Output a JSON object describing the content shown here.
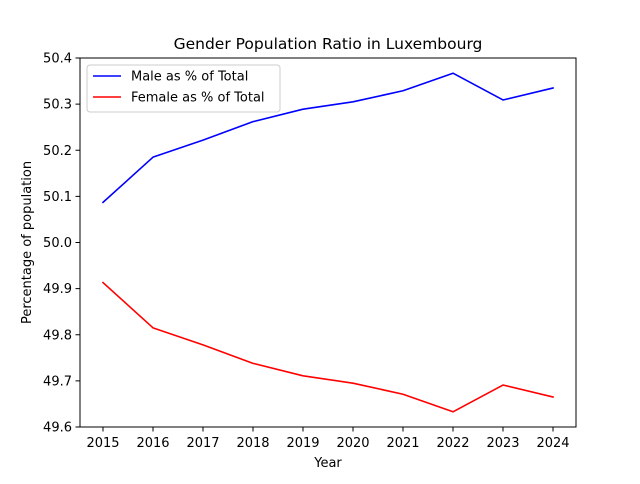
{
  "chart_data": {
    "type": "line",
    "title": "Gender Population Ratio in Luxembourg",
    "xlabel": "Year",
    "ylabel": "Percentage of population",
    "x": [
      2015,
      2016,
      2017,
      2018,
      2019,
      2020,
      2021,
      2022,
      2023,
      2024
    ],
    "xticks": [
      "2015",
      "2016",
      "2017",
      "2018",
      "2019",
      "2020",
      "2021",
      "2022",
      "2023",
      "2024"
    ],
    "ylim": [
      49.6,
      50.4
    ],
    "yticks": [
      "49.6",
      "49.7",
      "49.8",
      "49.9",
      "50.0",
      "50.1",
      "50.2",
      "50.3",
      "50.4"
    ],
    "grid": false,
    "legend_position": "upper-left",
    "series": [
      {
        "name": "Male as % of Total",
        "color": "#0000ff",
        "values": [
          50.087,
          50.185,
          50.222,
          50.262,
          50.289,
          50.305,
          50.329,
          50.367,
          50.309,
          50.335
        ]
      },
      {
        "name": "Female as % of Total",
        "color": "#ff0000",
        "values": [
          49.913,
          49.815,
          49.778,
          49.738,
          49.711,
          49.695,
          49.671,
          49.633,
          49.691,
          49.665
        ]
      }
    ]
  }
}
